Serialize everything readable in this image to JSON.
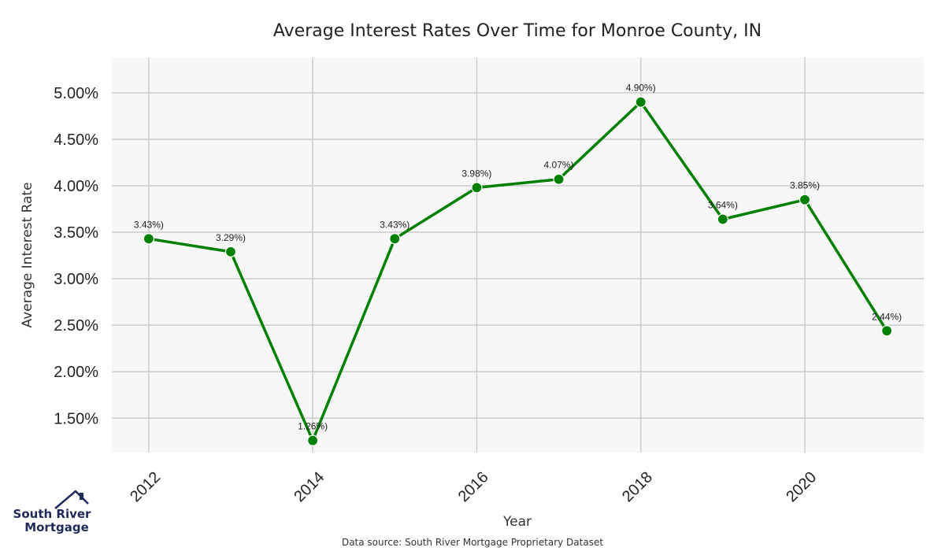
{
  "chart_data": {
    "type": "line",
    "title": "Average Interest Rates Over Time for Monroe County, IN",
    "xlabel": "Year",
    "ylabel": "Average Interest Rate",
    "x": [
      2012,
      2013,
      2014,
      2015,
      2016,
      2017,
      2018,
      2019,
      2020,
      2021
    ],
    "values": [
      3.43,
      3.29,
      1.26,
      3.43,
      3.98,
      4.07,
      4.9,
      3.64,
      3.85,
      2.44
    ],
    "data_labels": [
      "3.43%)",
      "3.29%)",
      "1.26%)",
      "3.43%)",
      "3.98%)",
      "4.07%)",
      "4.90%)",
      "3.64%)",
      "3.85%)",
      "2.44%)"
    ],
    "xlim": [
      2011.55,
      2021.45
    ],
    "ylim": [
      1.13,
      5.38
    ],
    "xticks": [
      2012,
      2014,
      2016,
      2018,
      2020
    ],
    "xtick_labels": [
      "2012",
      "2014",
      "2016",
      "2018",
      "2020"
    ],
    "yticks": [
      1.5,
      2.0,
      2.5,
      3.0,
      3.5,
      4.0,
      4.5,
      5.0
    ],
    "ytick_labels": [
      "1.50%",
      "2.00%",
      "2.50%",
      "3.00%",
      "3.50%",
      "4.00%",
      "4.50%",
      "5.00%"
    ],
    "grid": true,
    "line_color": "#008000",
    "plot_background": "#f7f7f7"
  },
  "source_note": "Data source: South River Mortgage Proprietary Dataset",
  "logo": {
    "line1": "South River",
    "line2": "Mortgage",
    "icon": "house-icon",
    "color": "#1f2a5a"
  }
}
